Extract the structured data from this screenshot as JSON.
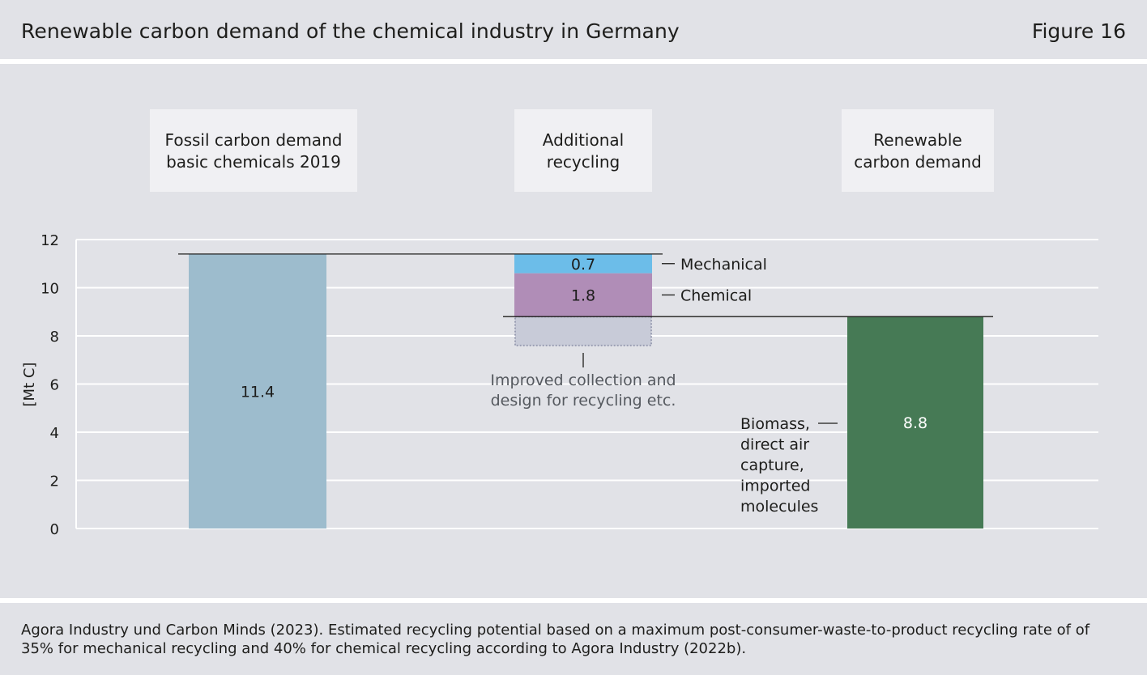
{
  "header": {
    "title": "Renewable carbon demand of the chemical industry in Germany",
    "figure_label": "Figure 16"
  },
  "footer": {
    "source": "Agora Industry und Carbon Minds (2023). Estimated recycling potential based on a maximum post-consumer-waste-to-product recycling rate of of 35% for mechanical recycling and 40% for chemical recycling according to Agora Industry (2022b)."
  },
  "chart_data": {
    "type": "bar",
    "ylabel": "[Mt C]",
    "ylim": [
      0,
      12
    ],
    "yticks": [
      0,
      2,
      4,
      6,
      8,
      10,
      12
    ],
    "grid": true,
    "categories": [
      [
        "Fossil carbon demand",
        "basic chemicals 2019"
      ],
      [
        "Additional",
        "recycling"
      ],
      [
        "Renewable",
        "carbon demand"
      ]
    ],
    "bars": [
      {
        "category": 0,
        "segment": "fossil",
        "from": 0,
        "to": 11.4,
        "label": "11.4",
        "color": "#9dbccd",
        "label_color": "#1d1d1b"
      },
      {
        "category": 1,
        "segment": "Mechanical",
        "from": 10.6,
        "to": 11.4,
        "label": "0.7",
        "color": "#6cbde9",
        "label_color": "#1d1d1b"
      },
      {
        "category": 1,
        "segment": "Chemical",
        "from": 8.8,
        "to": 10.6,
        "label": "1.8",
        "color": "#b08db7",
        "label_color": "#1d1d1b"
      },
      {
        "category": 2,
        "segment": "renewable",
        "from": 0,
        "to": 8.8,
        "label": "8.8",
        "color": "#467a55",
        "label_color": "#ffffff"
      }
    ],
    "dashed_segment": {
      "category": 1,
      "from": 7.6,
      "to": 8.8,
      "color": "#c8cbd8"
    },
    "segment_labels": [
      "Mechanical",
      "Chemical"
    ],
    "annotations": {
      "improved": [
        "Improved collection and",
        "design for recycling etc."
      ],
      "renewable_sources": [
        "Biomass,",
        "direct air",
        "capture,",
        "imported",
        "molecules"
      ]
    },
    "reference_lines": [
      11.4,
      8.8
    ]
  }
}
